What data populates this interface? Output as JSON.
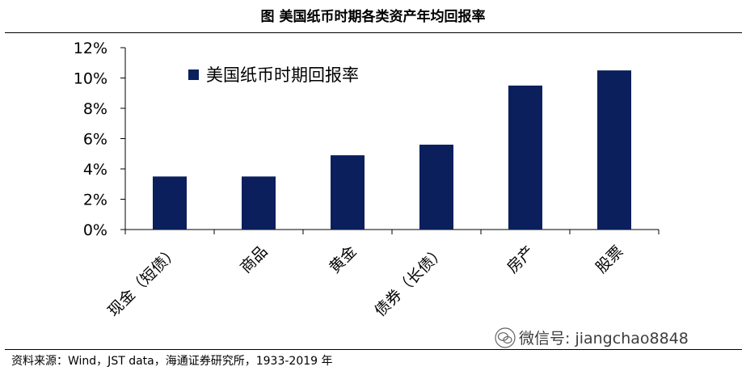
{
  "header": {
    "title": "图 美国纸币时期各类资产年均回报率"
  },
  "footer": {
    "source": "资料来源：Wind，JST data，海通证券研究所，1933-2019 年",
    "watermark": "微信号: jiangchao8848"
  },
  "chart_data": {
    "type": "bar",
    "categories": [
      "现金（短债）",
      "商品",
      "黄金",
      "债券（长债）",
      "房产",
      "股票"
    ],
    "series": [
      {
        "name": "美国纸币时期回报率",
        "values": [
          3.5,
          3.5,
          4.9,
          5.6,
          9.5,
          10.5
        ]
      }
    ],
    "ylim": [
      0,
      12
    ],
    "yticks": [
      "0%",
      "2%",
      "4%",
      "6%",
      "8%",
      "10%",
      "12%"
    ],
    "bar_color": "#0a1f5c",
    "legend_position": "top-left",
    "grid": false
  }
}
